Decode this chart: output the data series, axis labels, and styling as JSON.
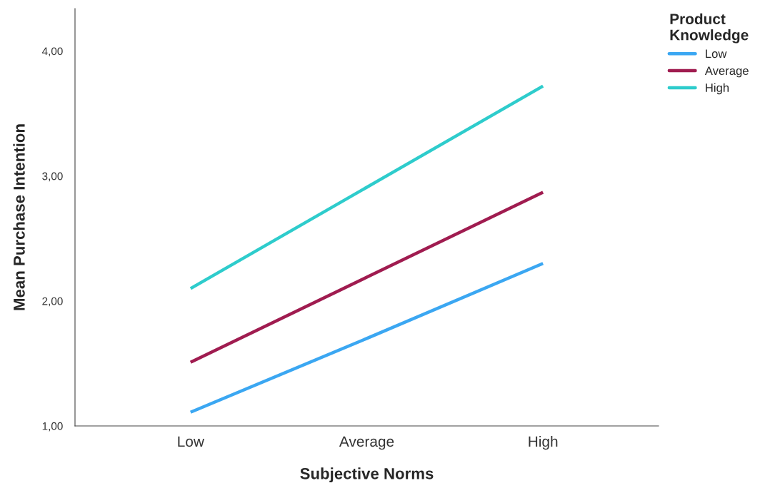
{
  "chart_data": {
    "type": "line",
    "categories": [
      "Low",
      "Average",
      "High"
    ],
    "xlabel": "Subjective Norms",
    "ylabel": "Mean Purchase Intention",
    "legend_title": "Product\nKnowledge",
    "ylim": [
      1,
      4.34
    ],
    "yticks": [
      {
        "value": 1,
        "label": "1,00"
      },
      {
        "value": 2,
        "label": "2,00"
      },
      {
        "value": 3,
        "label": "3,00"
      },
      {
        "value": 4,
        "label": "4,00"
      }
    ],
    "series": [
      {
        "name": "Low",
        "color": "#3ba7f2",
        "values": [
          1.11,
          1.7,
          2.3
        ]
      },
      {
        "name": "Average",
        "color": "#a01c50",
        "values": [
          1.51,
          2.19,
          2.87
        ]
      },
      {
        "name": "High",
        "color": "#2ecccc",
        "values": [
          2.1,
          2.91,
          3.72
        ]
      }
    ],
    "legend": "top right",
    "grid": false,
    "marker": "none",
    "line_style": "solid"
  }
}
